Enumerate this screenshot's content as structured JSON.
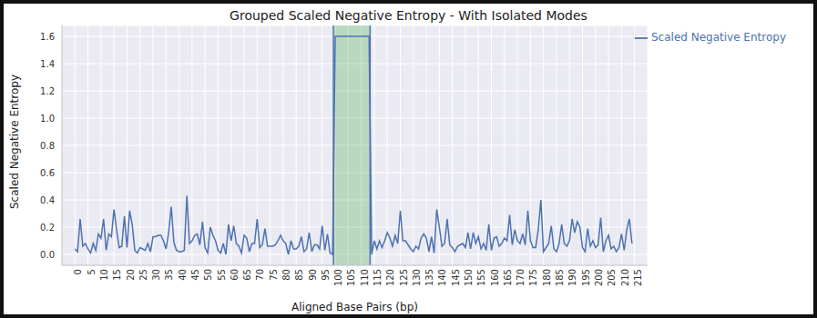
{
  "chart_data": {
    "type": "line",
    "title": "Grouped Scaled Negative Entropy - With Isolated Modes",
    "x_label": "Aligned Base Pairs (bp)",
    "y_label": "Scaled Negative Entropy",
    "x": [
      0,
      1,
      2,
      3,
      4,
      5,
      6,
      7,
      8,
      9,
      10,
      11,
      12,
      13,
      14,
      15,
      16,
      17,
      18,
      19,
      20,
      21,
      22,
      23,
      24,
      25,
      26,
      27,
      28,
      29,
      30,
      31,
      32,
      33,
      34,
      35,
      36,
      37,
      38,
      39,
      40,
      41,
      42,
      43,
      44,
      45,
      46,
      47,
      48,
      49,
      50,
      51,
      52,
      53,
      54,
      55,
      56,
      57,
      58,
      59,
      60,
      61,
      62,
      63,
      64,
      65,
      66,
      67,
      68,
      69,
      70,
      71,
      72,
      73,
      74,
      75,
      76,
      77,
      78,
      79,
      80,
      81,
      82,
      83,
      84,
      85,
      86,
      87,
      88,
      89,
      90,
      91,
      92,
      93,
      94,
      95,
      96,
      97,
      98,
      99,
      100,
      101,
      102,
      103,
      104,
      105,
      106,
      107,
      108,
      109,
      110,
      111,
      112,
      113,
      114,
      115,
      116,
      117,
      118,
      119,
      120,
      121,
      122,
      123,
      124,
      125,
      126,
      127,
      128,
      129,
      130,
      131,
      132,
      133,
      134,
      135,
      136,
      137,
      138,
      139,
      140,
      141,
      142,
      143,
      144,
      145,
      146,
      147,
      148,
      149,
      150,
      151,
      152,
      153,
      154,
      155,
      156,
      157,
      158,
      159,
      160,
      161,
      162,
      163,
      164,
      165,
      166,
      167,
      168,
      169,
      170,
      171,
      172,
      173,
      174,
      175,
      176,
      177,
      178,
      179,
      180,
      181,
      182,
      183,
      184,
      185,
      186,
      187,
      188,
      189,
      190,
      191,
      192,
      193,
      194,
      195,
      196,
      197,
      198,
      199,
      200,
      201,
      202,
      203,
      204,
      205,
      206,
      207,
      208,
      209,
      210,
      211,
      212,
      213,
      214
    ],
    "series": [
      {
        "name": "Scaled Negative Entropy",
        "color": "#4c72b0",
        "values": [
          0.04,
          0.02,
          0.26,
          0.06,
          0.08,
          0.04,
          0.01,
          0.08,
          0.03,
          0.15,
          0.12,
          0.26,
          0.03,
          0.15,
          0.13,
          0.33,
          0.18,
          0.05,
          0.06,
          0.28,
          0.05,
          0.32,
          0.22,
          0.03,
          0.01,
          0.05,
          0.04,
          0.03,
          0.08,
          0.02,
          0.13,
          0.13,
          0.14,
          0.14,
          0.1,
          0.04,
          0.16,
          0.35,
          0.09,
          0.03,
          0.02,
          0.02,
          0.03,
          0.43,
          0.08,
          0.1,
          0.14,
          0.15,
          0.07,
          0.24,
          0.05,
          0.01,
          0.2,
          0.14,
          0.1,
          0.03,
          0.01,
          0.08,
          0.0,
          0.22,
          0.1,
          0.21,
          0.08,
          0.06,
          0.01,
          0.14,
          0.12,
          0.02,
          0.08,
          0.08,
          0.26,
          0.05,
          0.07,
          0.19,
          0.06,
          0.06,
          0.06,
          0.07,
          0.1,
          0.14,
          0.1,
          0.08,
          0.0,
          0.1,
          0.04,
          0.04,
          0.06,
          0.13,
          0.02,
          0.04,
          0.16,
          0.02,
          0.07,
          0.07,
          0.04,
          0.21,
          0.03,
          0.15,
          0.01,
          0.0,
          1.6,
          1.6,
          1.6,
          1.6,
          1.6,
          1.6,
          1.6,
          1.6,
          1.6,
          1.6,
          1.6,
          1.6,
          1.6,
          1.6,
          0.0,
          0.1,
          0.04,
          0.1,
          0.05,
          0.1,
          0.16,
          0.12,
          0.06,
          0.14,
          0.08,
          0.32,
          0.1,
          0.1,
          0.07,
          0.04,
          0.02,
          0.06,
          0.04,
          0.12,
          0.15,
          0.12,
          0.02,
          0.13,
          0.01,
          0.33,
          0.2,
          0.06,
          0.08,
          0.26,
          0.07,
          0.05,
          0.02,
          0.06,
          0.07,
          0.08,
          0.05,
          0.16,
          0.04,
          0.16,
          0.08,
          0.13,
          0.04,
          0.08,
          0.03,
          0.22,
          0.03,
          0.12,
          0.13,
          0.06,
          0.08,
          0.12,
          0.1,
          0.29,
          0.07,
          0.18,
          0.1,
          0.08,
          0.15,
          0.07,
          0.32,
          0.1,
          0.05,
          0.05,
          0.18,
          0.4,
          0.02,
          0.05,
          0.08,
          0.21,
          0.04,
          0.02,
          0.08,
          0.22,
          0.08,
          0.06,
          0.1,
          0.26,
          0.16,
          0.24,
          0.2,
          0.05,
          0.02,
          0.19,
          0.06,
          0.1,
          0.05,
          0.07,
          0.27,
          0.02,
          0.1,
          0.14,
          0.04,
          0.06,
          0.02,
          0.05,
          0.15,
          0.03,
          0.18,
          0.26,
          0.08
        ]
      }
    ],
    "shaded_region": {
      "x": [
        99.3,
        113.4
      ],
      "color": "#2ca02c",
      "edge_color": "#4c72b0"
    },
    "xlim": [
      -5,
      220
    ],
    "xticks": [
      0,
      5,
      10,
      15,
      20,
      25,
      30,
      35,
      40,
      45,
      50,
      55,
      60,
      65,
      70,
      75,
      80,
      85,
      90,
      95,
      100,
      105,
      110,
      115,
      120,
      125,
      130,
      135,
      140,
      145,
      150,
      155,
      160,
      165,
      170,
      175,
      180,
      185,
      190,
      195,
      200,
      205,
      210,
      215
    ],
    "ylim": [
      -0.08,
      1.68
    ],
    "yticks": [
      {
        "value": 0,
        "label": "0.0"
      },
      {
        "value": 0.2,
        "label": "0.2"
      },
      {
        "value": 0.4,
        "label": "0.4"
      },
      {
        "value": 0.6,
        "label": "0.6"
      },
      {
        "value": 0.8,
        "label": "0.8"
      },
      {
        "value": 1,
        "label": "1.0"
      },
      {
        "value": 1.2,
        "label": "1.2"
      },
      {
        "value": 1.4,
        "label": "1.4"
      },
      {
        "value": 1.6,
        "label": "1.6"
      }
    ],
    "grid": true,
    "legend": "upper right"
  }
}
